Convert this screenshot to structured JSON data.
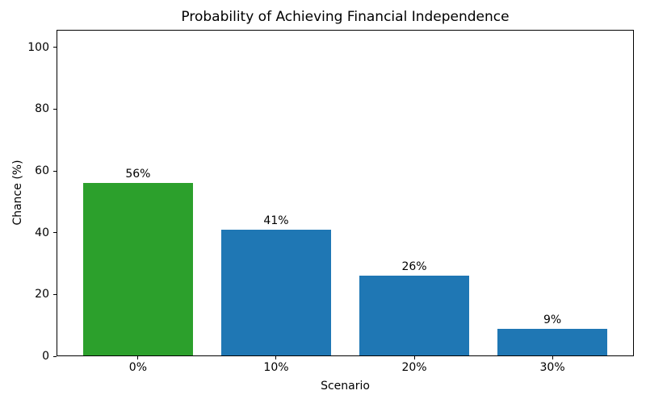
{
  "chart_data": {
    "type": "bar",
    "title": "Probability of Achieving Financial Independence",
    "xlabel": "Scenario",
    "ylabel": "Chance (%)",
    "categories": [
      "0%",
      "10%",
      "20%",
      "30%"
    ],
    "values": [
      56,
      41,
      26,
      9
    ],
    "bar_labels": [
      "56%",
      "41%",
      "26%",
      "9%"
    ],
    "bar_colors": [
      "#2ca02c",
      "#1f77b4",
      "#1f77b4",
      "#1f77b4"
    ],
    "yticks": [
      0,
      20,
      40,
      60,
      80,
      100
    ],
    "ylim": [
      0,
      105.7
    ],
    "xlim_units": [
      -0.59,
      3.59
    ],
    "bar_width_units": 0.8,
    "grid": false,
    "legend": "none",
    "spine_color": "#000000",
    "text_color": "#000000",
    "background_color": "#ffffff"
  }
}
